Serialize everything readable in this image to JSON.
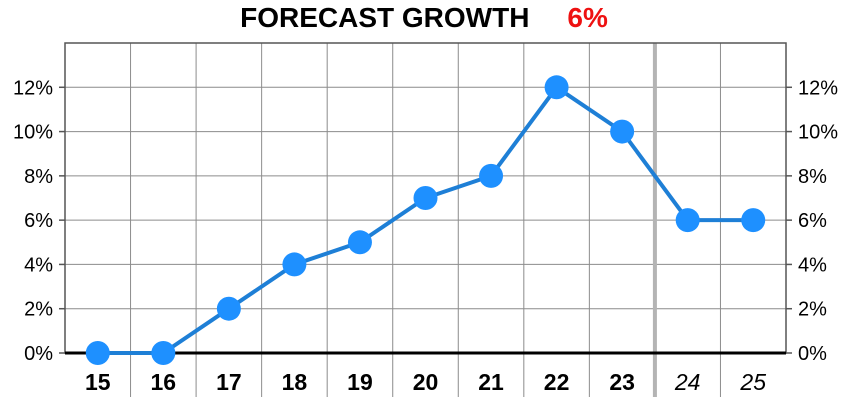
{
  "header": {
    "title": "FORECAST GROWTH",
    "value": "6%"
  },
  "chart_data": {
    "type": "line",
    "title": "FORECAST GROWTH",
    "title_value": "6%",
    "categories": [
      "15",
      "16",
      "17",
      "18",
      "19",
      "20",
      "21",
      "22",
      "23",
      "24",
      "25"
    ],
    "forecast_categories": [
      "24",
      "25"
    ],
    "series": [
      {
        "values": [
          0,
          0,
          2,
          4,
          5,
          7,
          8,
          12,
          10,
          6,
          6
        ]
      }
    ],
    "ylim": [
      0,
      14
    ],
    "yticks": [
      0,
      2,
      4,
      6,
      8,
      10,
      12
    ],
    "ytick_labels": [
      "0%",
      "2%",
      "4%",
      "6%",
      "8%",
      "10%",
      "12%"
    ],
    "grid": true,
    "colors": {
      "line": "#1e7fd6",
      "marker": "#1e90ff",
      "title_value": "#ee1111",
      "grid": "#8c8c8c",
      "forecast_divider": "#b4b4b4"
    }
  }
}
